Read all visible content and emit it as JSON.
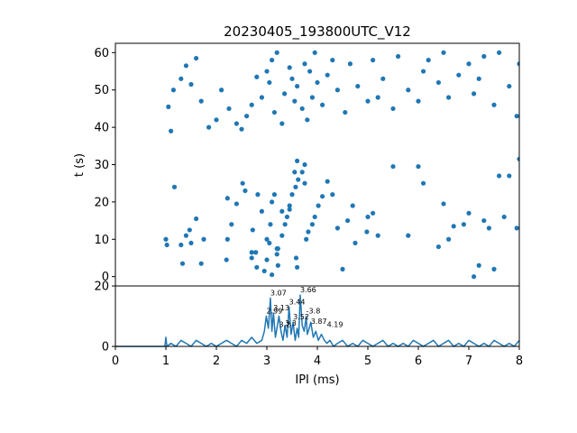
{
  "chart_data": [
    {
      "type": "scatter",
      "title": "20230405_193800UTC_V12",
      "ylabel": "t (s)",
      "xlim": [
        0,
        8
      ],
      "ylim": [
        62.5,
        -2.5
      ],
      "yticks": [
        "0",
        "10",
        "20",
        "30",
        "40",
        "50",
        "60"
      ],
      "color": "#1f77b4",
      "points": [
        [
          1.0,
          10.0
        ],
        [
          1.02,
          8.5
        ],
        [
          1.17,
          24
        ],
        [
          1.3,
          8.5
        ],
        [
          1.33,
          3.5
        ],
        [
          1.4,
          11
        ],
        [
          1.47,
          12.5
        ],
        [
          1.5,
          9
        ],
        [
          1.6,
          15.5
        ],
        [
          1.7,
          3.5
        ],
        [
          1.75,
          10
        ],
        [
          2.22,
          21
        ],
        [
          2.2,
          4.5
        ],
        [
          2.22,
          10
        ],
        [
          2.3,
          14
        ],
        [
          2.4,
          19.5
        ],
        [
          2.52,
          25
        ],
        [
          2.57,
          23
        ],
        [
          2.7,
          5
        ],
        [
          2.72,
          12.5
        ],
        [
          2.78,
          6.5
        ],
        [
          2.82,
          22
        ],
        [
          2.9,
          17.5
        ],
        [
          3.0,
          4.5
        ],
        [
          3.0,
          10
        ],
        [
          3.05,
          9
        ],
        [
          3.07,
          14
        ],
        [
          3.1,
          20
        ],
        [
          3.15,
          22
        ],
        [
          3.2,
          6
        ],
        [
          3.22,
          7.5
        ],
        [
          3.22,
          3
        ],
        [
          3.3,
          11
        ],
        [
          3.36,
          14
        ],
        [
          3.4,
          16
        ],
        [
          3.45,
          18
        ],
        [
          3.5,
          22
        ],
        [
          3.57,
          24
        ],
        [
          3.62,
          26
        ],
        [
          3.7,
          28
        ],
        [
          3.75,
          30
        ],
        [
          3.6,
          2.5
        ],
        [
          3.58,
          5
        ],
        [
          3.78,
          10
        ],
        [
          3.82,
          12
        ],
        [
          3.9,
          14
        ],
        [
          3.95,
          16
        ],
        [
          4.02,
          19
        ],
        [
          4.1,
          21.5
        ],
        [
          4.2,
          25.5
        ],
        [
          4.3,
          22
        ],
        [
          4.4,
          13
        ],
        [
          4.5,
          2
        ],
        [
          4.6,
          15
        ],
        [
          4.7,
          19
        ],
        [
          4.75,
          9
        ],
        [
          4.98,
          12
        ],
        [
          5.0,
          16
        ],
        [
          5.1,
          17
        ],
        [
          5.2,
          11
        ],
        [
          5.5,
          29.5
        ],
        [
          5.8,
          11
        ],
        [
          6.0,
          29.5
        ],
        [
          6.1,
          25
        ],
        [
          6.4,
          8
        ],
        [
          6.5,
          19.5
        ],
        [
          6.6,
          10
        ],
        [
          6.7,
          13.5
        ],
        [
          6.9,
          14
        ],
        [
          7.0,
          17
        ],
        [
          7.1,
          0
        ],
        [
          7.2,
          3
        ],
        [
          7.3,
          15
        ],
        [
          7.4,
          13
        ],
        [
          7.5,
          2
        ],
        [
          7.6,
          27
        ],
        [
          7.7,
          16
        ],
        [
          7.8,
          27
        ],
        [
          8.0,
          31.5
        ],
        [
          7.95,
          13
        ],
        [
          2.95,
          1.5
        ],
        [
          3.1,
          0.5
        ],
        [
          2.8,
          2.5
        ],
        [
          2.7,
          6.5
        ],
        [
          3.2,
          7.5
        ],
        [
          3.3,
          17.5
        ],
        [
          3.45,
          19
        ],
        [
          3.55,
          28
        ],
        [
          3.6,
          31
        ],
        [
          3.75,
          25
        ],
        [
          1.1,
          39
        ],
        [
          1.05,
          45.5
        ],
        [
          1.15,
          50
        ],
        [
          1.3,
          53
        ],
        [
          1.4,
          56.5
        ],
        [
          1.5,
          51.5
        ],
        [
          1.6,
          58.5
        ],
        [
          1.7,
          47
        ],
        [
          1.85,
          40
        ],
        [
          2.0,
          42
        ],
        [
          2.1,
          50
        ],
        [
          2.25,
          45
        ],
        [
          2.4,
          41
        ],
        [
          2.5,
          39.5
        ],
        [
          2.6,
          43
        ],
        [
          2.7,
          46
        ],
        [
          2.8,
          53.5
        ],
        [
          2.9,
          48
        ],
        [
          3.0,
          55
        ],
        [
          3.05,
          52
        ],
        [
          3.1,
          58
        ],
        [
          3.15,
          44
        ],
        [
          3.2,
          60
        ],
        [
          3.3,
          41
        ],
        [
          3.35,
          49
        ],
        [
          3.45,
          56
        ],
        [
          3.5,
          53
        ],
        [
          3.55,
          47
        ],
        [
          3.6,
          51
        ],
        [
          3.7,
          45
        ],
        [
          3.75,
          57
        ],
        [
          3.8,
          42
        ],
        [
          3.85,
          55
        ],
        [
          3.9,
          48
        ],
        [
          3.95,
          60
        ],
        [
          4.0,
          52
        ],
        [
          4.1,
          46
        ],
        [
          4.2,
          54
        ],
        [
          4.3,
          58
        ],
        [
          4.4,
          50
        ],
        [
          4.55,
          44
        ],
        [
          4.65,
          57
        ],
        [
          4.8,
          51
        ],
        [
          5.0,
          47
        ],
        [
          5.1,
          58
        ],
        [
          5.2,
          48
        ],
        [
          5.3,
          53
        ],
        [
          5.5,
          45
        ],
        [
          5.6,
          59
        ],
        [
          5.8,
          50
        ],
        [
          6.0,
          47
        ],
        [
          6.1,
          55
        ],
        [
          6.2,
          58
        ],
        [
          6.4,
          52
        ],
        [
          6.5,
          60
        ],
        [
          6.6,
          48
        ],
        [
          6.8,
          54
        ],
        [
          7.0,
          57
        ],
        [
          7.1,
          49
        ],
        [
          7.2,
          53
        ],
        [
          7.3,
          59
        ],
        [
          7.5,
          46
        ],
        [
          7.6,
          60
        ],
        [
          7.8,
          51
        ],
        [
          7.95,
          43
        ],
        [
          8.0,
          57
        ]
      ]
    },
    {
      "type": "line",
      "xlabel": "IPI (ms)",
      "xlim": [
        0,
        8
      ],
      "ylim": [
        0,
        20
      ],
      "xticks": [
        "0",
        "1",
        "2",
        "3",
        "4",
        "5",
        "6",
        "7",
        "8"
      ],
      "yticks": [
        "0",
        "20"
      ],
      "color": "#1f77b4",
      "x": [
        0,
        0.98,
        1.0,
        1.02,
        1.1,
        1.2,
        1.3,
        1.4,
        1.5,
        1.6,
        1.7,
        1.8,
        1.9,
        2.0,
        2.1,
        2.2,
        2.3,
        2.4,
        2.5,
        2.6,
        2.7,
        2.8,
        2.9,
        2.95,
        2.99,
        3.03,
        3.07,
        3.1,
        3.13,
        3.17,
        3.2,
        3.24,
        3.28,
        3.32,
        3.36,
        3.4,
        3.44,
        3.48,
        3.52,
        3.56,
        3.6,
        3.63,
        3.66,
        3.7,
        3.74,
        3.78,
        3.8,
        3.84,
        3.87,
        3.92,
        3.97,
        4.02,
        4.08,
        4.14,
        4.19,
        4.25,
        4.32,
        4.4,
        4.5,
        4.6,
        4.7,
        4.8,
        4.9,
        5.0,
        5.1,
        5.2,
        5.3,
        5.4,
        5.5,
        5.6,
        5.7,
        5.8,
        5.9,
        6.0,
        6.1,
        6.2,
        6.3,
        6.4,
        6.5,
        6.6,
        6.7,
        6.8,
        6.9,
        7.0,
        7.1,
        7.2,
        7.3,
        7.4,
        7.5,
        7.6,
        7.7,
        7.8,
        7.9,
        8.0
      ],
      "y": [
        0,
        0,
        3,
        0,
        1,
        0,
        2,
        1,
        0,
        2,
        1,
        0,
        1,
        0,
        1,
        2,
        1,
        0,
        2,
        1,
        3,
        1,
        2,
        5,
        10,
        6,
        16,
        5,
        11,
        3,
        6,
        10,
        5,
        2,
        7,
        3,
        13,
        4,
        8,
        2,
        6,
        3,
        17,
        7,
        5,
        10,
        4,
        6,
        8,
        3,
        5,
        2,
        4,
        2,
        1,
        2,
        0,
        1,
        2,
        0,
        1,
        0,
        2,
        1,
        0,
        1,
        2,
        0,
        1,
        0,
        1,
        0,
        2,
        1,
        0,
        1,
        2,
        0,
        1,
        2,
        0,
        1,
        0,
        2,
        1,
        0,
        1,
        0,
        2,
        1,
        0,
        1,
        0,
        2
      ],
      "annotations": [
        {
          "text": "3.07",
          "x": 3.07,
          "y": 16
        },
        {
          "text": "3.66",
          "x": 3.66,
          "y": 17
        },
        {
          "text": "3.13",
          "x": 3.13,
          "y": 11
        },
        {
          "text": "3.44",
          "x": 3.44,
          "y": 13
        },
        {
          "text": "2.99",
          "x": 2.99,
          "y": 10
        },
        {
          "text": "-3.8",
          "x": 3.78,
          "y": 10
        },
        {
          "text": "3.2",
          "x": 3.24,
          "y": 5.5
        },
        {
          "text": "3.3",
          "x": 3.36,
          "y": 6
        },
        {
          "text": "3.52",
          "x": 3.52,
          "y": 8
        },
        {
          "text": "3.87",
          "x": 3.87,
          "y": 6.5
        },
        {
          "text": "4.19",
          "x": 4.19,
          "y": 5.5
        }
      ]
    }
  ]
}
